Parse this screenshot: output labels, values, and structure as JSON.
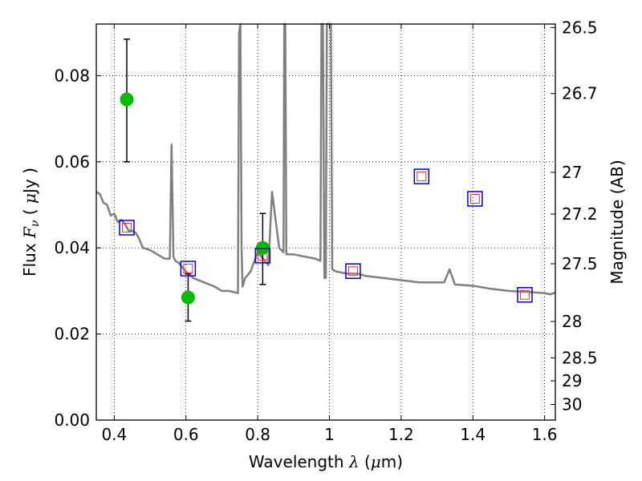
{
  "chart_data": {
    "type": "scatter",
    "xlabel": "Wavelength  λ (μm)",
    "ylabel": "Flux  Fν  ( μJy )",
    "y2label": "Magnitude (AB)",
    "xlim": [
      0.35,
      1.63
    ],
    "ylim": [
      0.0,
      0.092
    ],
    "grid": true,
    "x_ticks": [
      "0.4",
      "0.6",
      "0.8",
      "1",
      "1.2",
      "1.4",
      "1.6"
    ],
    "y_ticks": [
      "0.00",
      "0.02",
      "0.04",
      "0.06",
      "0.08"
    ],
    "mag_ticks": [
      "26.5",
      "26.7",
      "27",
      "27.2",
      "27.5",
      "28",
      "28.5",
      "29",
      "30"
    ],
    "colors": {
      "spectrum": "#808080",
      "observed": "#00bb00",
      "model_box": "#0000dd",
      "model_inner": "#ee3333"
    },
    "spectrum": {
      "x": [
        0.35,
        0.36,
        0.37,
        0.38,
        0.39,
        0.4,
        0.41,
        0.42,
        0.43,
        0.44,
        0.45,
        0.46,
        0.47,
        0.48,
        0.5,
        0.52,
        0.54,
        0.555,
        0.56,
        0.565,
        0.57,
        0.58,
        0.6,
        0.62,
        0.65,
        0.68,
        0.7,
        0.72,
        0.745,
        0.748,
        0.752,
        0.755,
        0.758,
        0.765,
        0.78,
        0.8,
        0.83,
        0.84,
        0.86,
        0.872,
        0.874,
        0.877,
        0.88,
        0.9,
        0.93,
        0.96,
        0.975,
        0.978,
        0.982,
        0.986,
        0.99,
        0.993,
        0.996,
        1.0,
        1.004,
        1.008,
        1.02,
        1.05,
        1.08,
        1.1,
        1.15,
        1.2,
        1.25,
        1.3,
        1.32,
        1.335,
        1.35,
        1.4,
        1.45,
        1.5,
        1.55,
        1.6,
        1.615,
        1.63
      ],
      "y": [
        0.053,
        0.0525,
        0.0505,
        0.05,
        0.0475,
        0.048,
        0.046,
        0.0465,
        0.0455,
        0.044,
        0.044,
        0.0435,
        0.042,
        0.04,
        0.0395,
        0.0385,
        0.0375,
        0.0375,
        0.064,
        0.038,
        0.037,
        0.0365,
        0.0345,
        0.033,
        0.032,
        0.031,
        0.03,
        0.03,
        0.0295,
        0.09,
        0.092,
        0.04,
        0.031,
        0.033,
        0.0345,
        0.039,
        0.036,
        0.053,
        0.04,
        0.039,
        0.092,
        0.092,
        0.0385,
        0.0385,
        0.038,
        0.0375,
        0.037,
        0.092,
        0.092,
        0.033,
        0.033,
        0.092,
        0.092,
        0.092,
        0.092,
        0.035,
        0.0345,
        0.034,
        0.034,
        0.0335,
        0.033,
        0.0325,
        0.032,
        0.032,
        0.032,
        0.035,
        0.0315,
        0.0312,
        0.0305,
        0.03,
        0.0298,
        0.0295,
        0.0292,
        0.0296
      ]
    },
    "observed_points": [
      {
        "x": 0.435,
        "y": 0.0745,
        "yerr_low": 0.06,
        "yerr_high": 0.0885
      },
      {
        "x": 0.606,
        "y": 0.0285,
        "yerr_low": 0.023,
        "yerr_high": 0.034
      },
      {
        "x": 0.814,
        "y": 0.04,
        "yerr_low": 0.0315,
        "yerr_high": 0.048
      }
    ],
    "model_points": [
      {
        "x": 0.435,
        "y": 0.0447
      },
      {
        "x": 0.606,
        "y": 0.0352
      },
      {
        "x": 0.814,
        "y": 0.0382
      },
      {
        "x": 1.066,
        "y": 0.0346
      },
      {
        "x": 1.257,
        "y": 0.0566
      },
      {
        "x": 1.406,
        "y": 0.0514
      },
      {
        "x": 1.545,
        "y": 0.0291
      }
    ]
  }
}
